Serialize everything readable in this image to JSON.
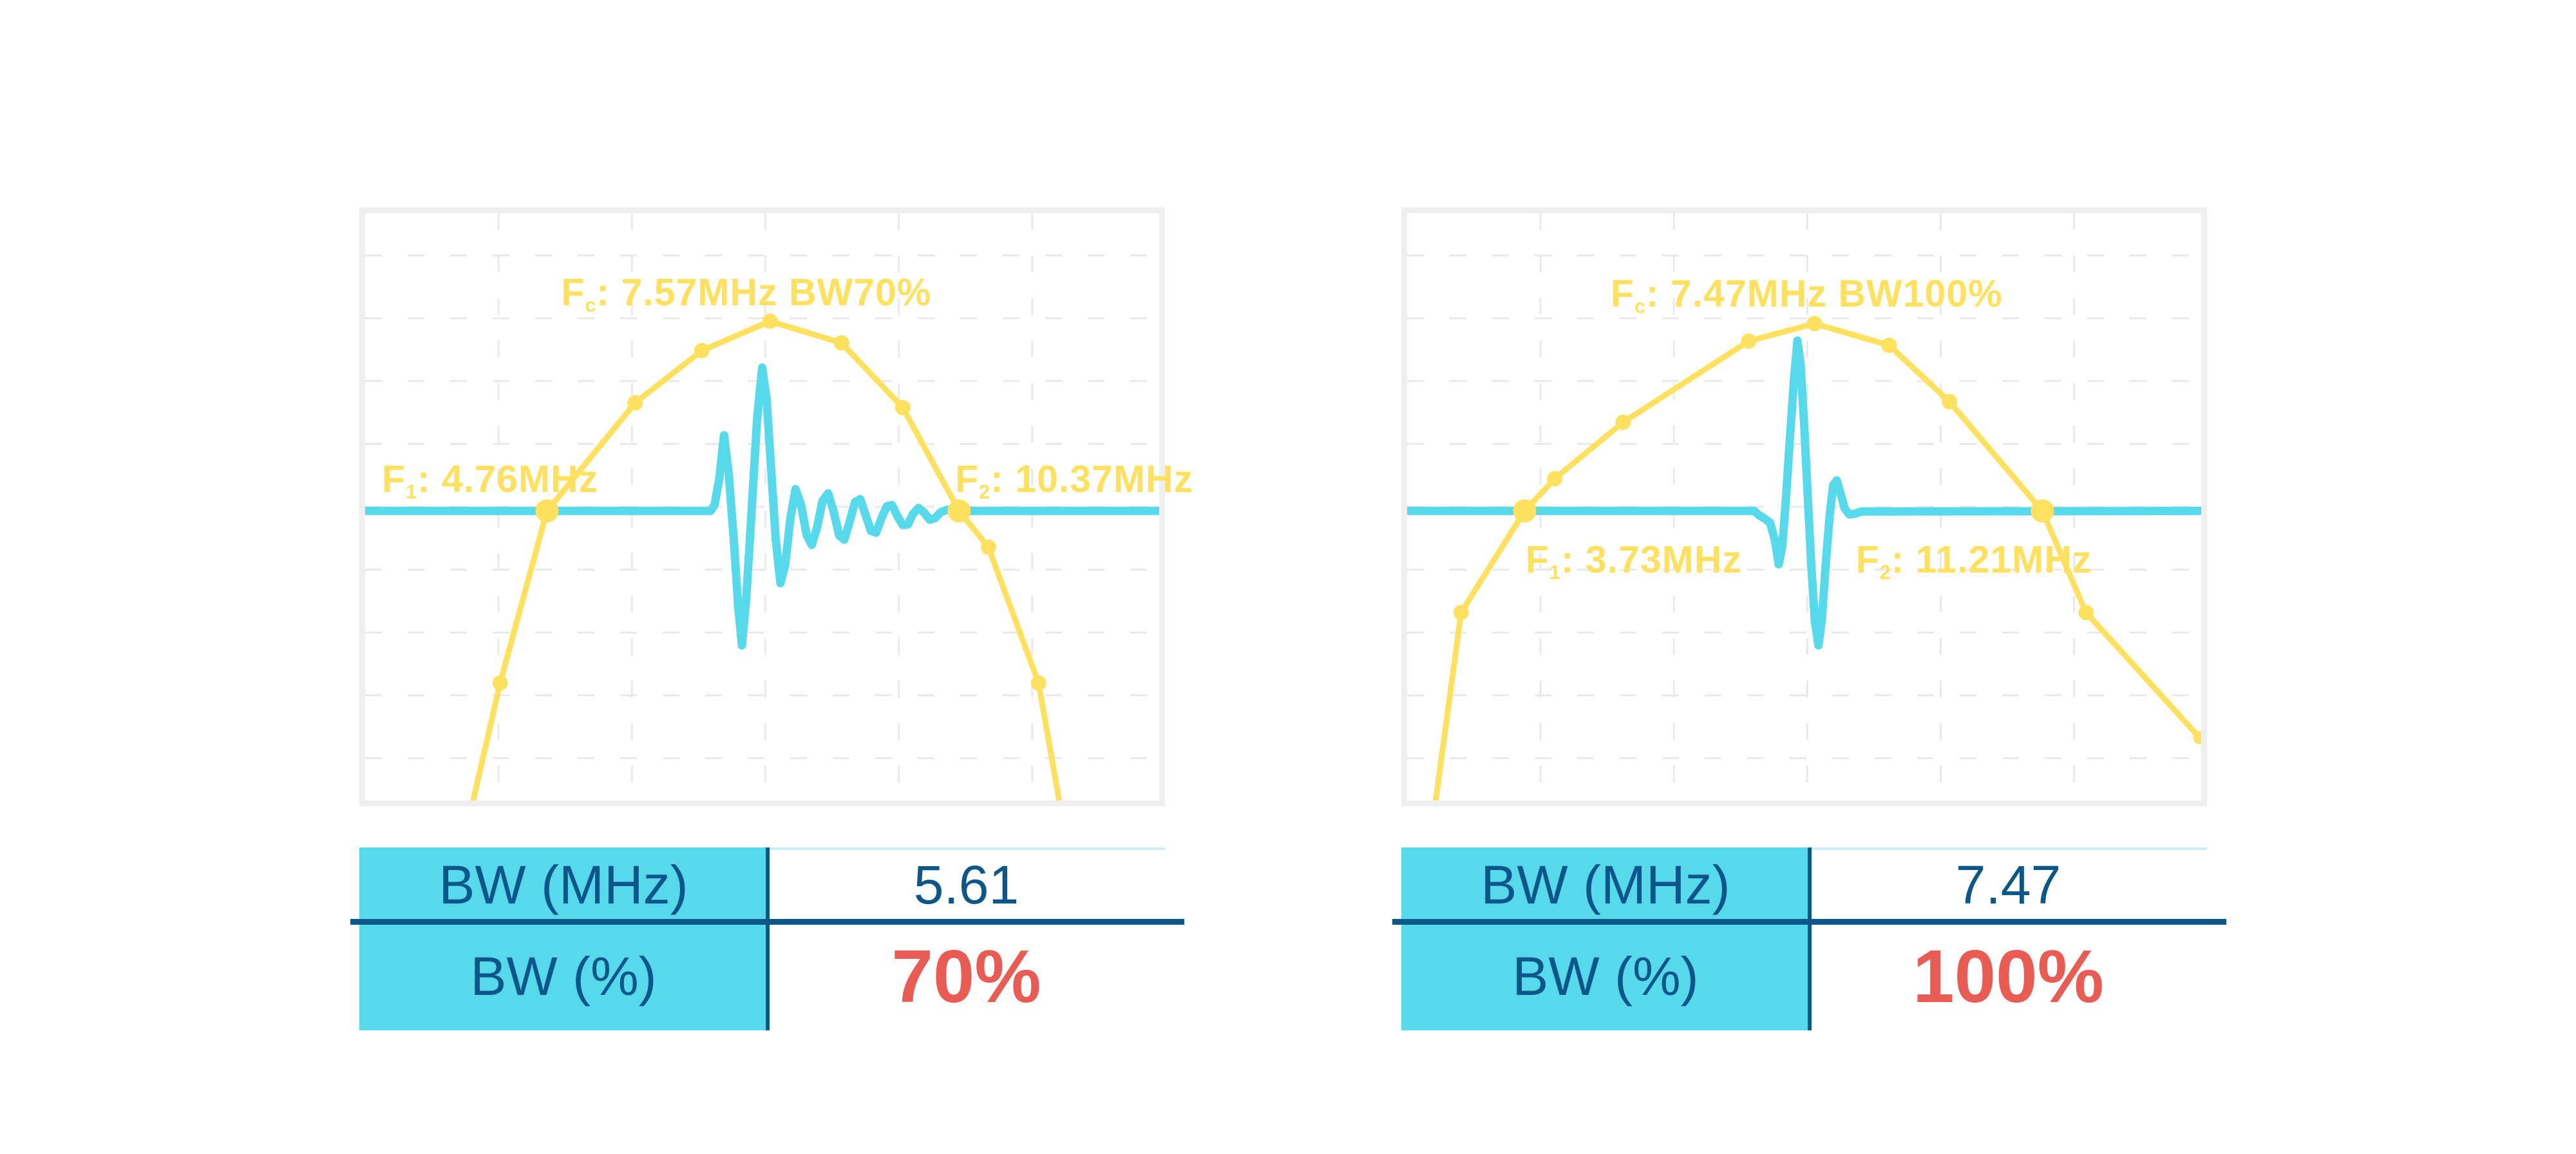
{
  "colors": {
    "yellow": "#FFE15F",
    "cyan": "#57D9EC",
    "navy": "#0D5788",
    "red": "#E95C53",
    "frame": "#EFEFEF",
    "grid": "#E9E9E9",
    "table_topline": "#CDEEF6",
    "background": "#FFFFFF"
  },
  "chart_data": [
    {
      "type": "line",
      "name": "spectrum-bw70",
      "bandwidth": {
        "fc_mhz": 7.57,
        "f1_mhz": 4.76,
        "f2_mhz": 10.37,
        "bw_mhz": 5.61,
        "bw_percent": 70
      },
      "fc_label": {
        "base": "F",
        "sub": "c",
        "rest": ": 7.57MHz BW70%",
        "x": 0.48,
        "y": 0.137,
        "align": "center"
      },
      "f1_label": {
        "base": "F",
        "sub": "1",
        "rest": ": 4.76MHz",
        "x": 0.021,
        "y": 0.455,
        "align": "left"
      },
      "f2_label": {
        "base": "F",
        "sub": "2",
        "rest": ": 10.37MHz",
        "x": 0.743,
        "y": 0.455,
        "align": "left"
      },
      "grid": {
        "x": [
          0.168,
          0.336,
          0.504,
          0.672,
          0.84
        ],
        "y": [
          0.072,
          0.179,
          0.286,
          0.393,
          0.5,
          0.607,
          0.714,
          0.821,
          0.928
        ]
      },
      "series": [
        {
          "name": "pulse",
          "color_key": "cyan",
          "points": [
            [
              0.0,
              0.507
            ],
            [
              0.435,
              0.507
            ],
            [
              0.44,
              0.497
            ],
            [
              0.446,
              0.452
            ],
            [
              0.452,
              0.378
            ],
            [
              0.458,
              0.445
            ],
            [
              0.464,
              0.552
            ],
            [
              0.47,
              0.672
            ],
            [
              0.4745,
              0.736
            ],
            [
              0.48,
              0.655
            ],
            [
              0.487,
              0.5
            ],
            [
              0.4935,
              0.352
            ],
            [
              0.5,
              0.263
            ],
            [
              0.5055,
              0.315
            ],
            [
              0.511,
              0.43
            ],
            [
              0.517,
              0.555
            ],
            [
              0.523,
              0.63
            ],
            [
              0.529,
              0.598
            ],
            [
              0.5355,
              0.52
            ],
            [
              0.542,
              0.47
            ],
            [
              0.549,
              0.497
            ],
            [
              0.556,
              0.548
            ],
            [
              0.5625,
              0.565
            ],
            [
              0.569,
              0.536
            ],
            [
              0.576,
              0.49
            ],
            [
              0.583,
              0.477
            ],
            [
              0.59,
              0.508
            ],
            [
              0.597,
              0.549
            ],
            [
              0.6035,
              0.556
            ],
            [
              0.61,
              0.526
            ],
            [
              0.617,
              0.492
            ],
            [
              0.6235,
              0.487
            ],
            [
              0.63,
              0.513
            ],
            [
              0.637,
              0.541
            ],
            [
              0.6435,
              0.544
            ],
            [
              0.65,
              0.52
            ],
            [
              0.657,
              0.499
            ],
            [
              0.6635,
              0.497
            ],
            [
              0.67,
              0.515
            ],
            [
              0.677,
              0.531
            ],
            [
              0.6835,
              0.53
            ],
            [
              0.69,
              0.512
            ],
            [
              0.697,
              0.502
            ],
            [
              0.704,
              0.51
            ],
            [
              0.711,
              0.522
            ],
            [
              0.718,
              0.519
            ],
            [
              0.725,
              0.509
            ],
            [
              0.733,
              0.505
            ],
            [
              0.74,
              0.507
            ],
            [
              1.0,
              0.507
            ]
          ]
        },
        {
          "name": "spectrum",
          "color_key": "yellow",
          "points": [
            [
              0.131,
              1.03
            ],
            [
              0.17,
              0.8
            ],
            [
              0.229,
              0.507
            ],
            [
              0.34,
              0.323
            ],
            [
              0.424,
              0.234
            ],
            [
              0.51,
              0.184
            ],
            [
              0.6,
              0.221
            ],
            [
              0.677,
              0.331
            ],
            [
              0.748,
              0.507
            ],
            [
              0.785,
              0.569
            ],
            [
              0.848,
              0.8
            ],
            [
              0.878,
              1.03
            ]
          ]
        }
      ],
      "dots": {
        "regular": [
          [
            0.17,
            0.8
          ],
          [
            0.34,
            0.323
          ],
          [
            0.424,
            0.234
          ],
          [
            0.51,
            0.184
          ],
          [
            0.6,
            0.221
          ],
          [
            0.677,
            0.331
          ],
          [
            0.785,
            0.569
          ],
          [
            0.848,
            0.8
          ]
        ],
        "big": [
          [
            0.229,
            0.507
          ],
          [
            0.748,
            0.507
          ]
        ],
        "small": []
      },
      "table": {
        "rows": [
          {
            "label": "BW (MHz)",
            "value": "5.61"
          },
          {
            "label": "BW (%)",
            "value": "70%"
          }
        ]
      }
    },
    {
      "type": "line",
      "name": "spectrum-bw100",
      "bandwidth": {
        "fc_mhz": 7.47,
        "f1_mhz": 3.73,
        "f2_mhz": 11.21,
        "bw_mhz": 7.47,
        "bw_percent": 100
      },
      "fc_label": {
        "base": "F",
        "sub": "c",
        "rest": ": 7.47MHz BW100%",
        "x": 0.503,
        "y": 0.139,
        "align": "center"
      },
      "f1_label": {
        "base": "F",
        "sub": "1",
        "rest": ": 3.73MHz",
        "x": 0.149,
        "y": 0.592,
        "align": "left"
      },
      "f2_label": {
        "base": "F",
        "sub": "2",
        "rest": ": 11.21MHz",
        "x": 0.565,
        "y": 0.592,
        "align": "left"
      },
      "grid": {
        "x": [
          0.168,
          0.336,
          0.504,
          0.672,
          0.84
        ],
        "y": [
          0.072,
          0.179,
          0.286,
          0.393,
          0.5,
          0.607,
          0.714,
          0.821,
          0.928
        ]
      },
      "series": [
        {
          "name": "pulse",
          "color_key": "cyan",
          "points": [
            [
              0.0,
              0.507
            ],
            [
              0.437,
              0.507
            ],
            [
              0.443,
              0.514
            ],
            [
              0.45,
              0.52
            ],
            [
              0.457,
              0.527
            ],
            [
              0.463,
              0.556
            ],
            [
              0.468,
              0.598
            ],
            [
              0.4725,
              0.567
            ],
            [
              0.477,
              0.487
            ],
            [
              0.482,
              0.385
            ],
            [
              0.487,
              0.286
            ],
            [
              0.4915,
              0.217
            ],
            [
              0.4955,
              0.258
            ],
            [
              0.5,
              0.36
            ],
            [
              0.5045,
              0.48
            ],
            [
              0.509,
              0.6
            ],
            [
              0.5135,
              0.695
            ],
            [
              0.518,
              0.736
            ],
            [
              0.5225,
              0.69
            ],
            [
              0.527,
              0.6
            ],
            [
              0.532,
              0.516
            ],
            [
              0.5365,
              0.463
            ],
            [
              0.541,
              0.455
            ],
            [
              0.546,
              0.478
            ],
            [
              0.551,
              0.503
            ],
            [
              0.557,
              0.513
            ],
            [
              0.5635,
              0.512
            ],
            [
              0.572,
              0.508
            ],
            [
              1.0,
              0.507
            ]
          ]
        },
        {
          "name": "spectrum",
          "color_key": "yellow",
          "points": [
            [
              0.033,
              1.03
            ],
            [
              0.068,
              0.68
            ],
            [
              0.148,
              0.507
            ],
            [
              0.186,
              0.452
            ],
            [
              0.272,
              0.356
            ],
            [
              0.43,
              0.218
            ],
            [
              0.513,
              0.188
            ],
            [
              0.607,
              0.225
            ],
            [
              0.683,
              0.321
            ],
            [
              0.8,
              0.507
            ],
            [
              0.855,
              0.68
            ],
            [
              0.998,
              0.893
            ]
          ]
        }
      ],
      "dots": {
        "regular": [
          [
            0.068,
            0.68
          ],
          [
            0.186,
            0.452
          ],
          [
            0.272,
            0.356
          ],
          [
            0.43,
            0.218
          ],
          [
            0.513,
            0.188
          ],
          [
            0.607,
            0.225
          ],
          [
            0.683,
            0.321
          ],
          [
            0.855,
            0.68
          ]
        ],
        "big": [
          [
            0.148,
            0.507
          ],
          [
            0.8,
            0.507
          ]
        ],
        "small": [
          [
            0.998,
            0.893
          ]
        ]
      },
      "table": {
        "rows": [
          {
            "label": "BW (MHz)",
            "value": "7.47"
          },
          {
            "label": "BW (%)",
            "value": "100%"
          }
        ]
      }
    }
  ]
}
